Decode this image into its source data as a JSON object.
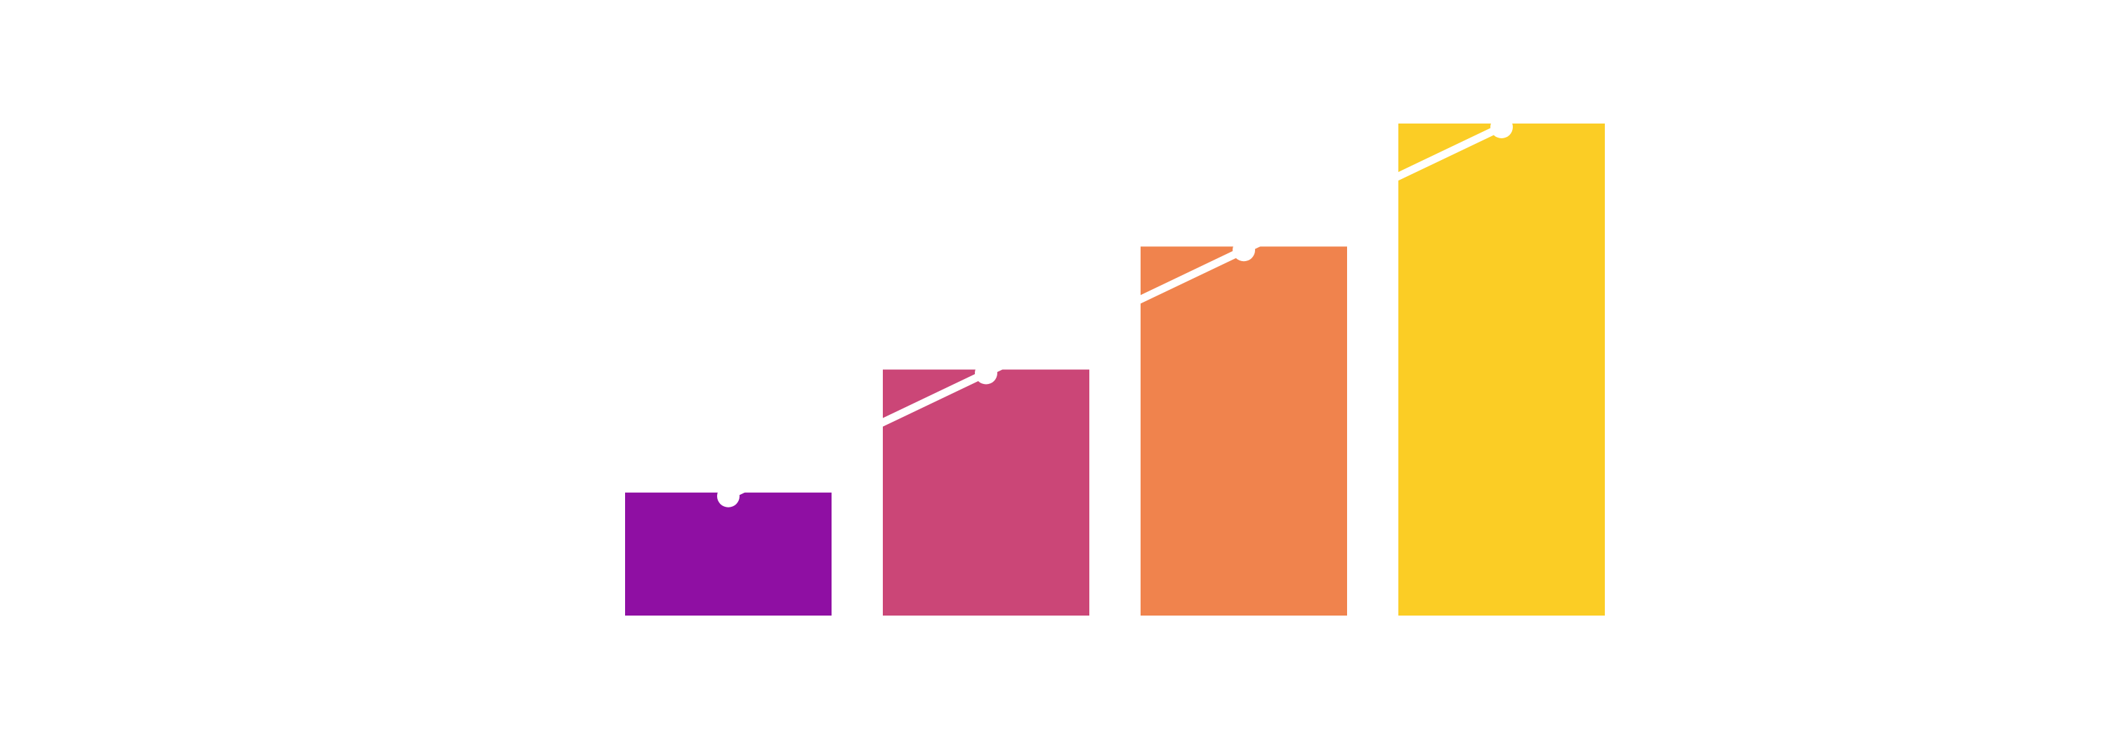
{
  "chart_data": {
    "type": "bar",
    "categories": [
      "",
      "",
      "",
      ""
    ],
    "values": [
      1,
      2,
      3,
      4
    ],
    "ylim": [
      0,
      4
    ],
    "grid": false,
    "legend": "none",
    "overlay": {
      "type": "line",
      "values": [
        1,
        2,
        3,
        4
      ],
      "color": "#ffffff",
      "markers": true
    },
    "bar_colors": [
      "#8F0FA3",
      "#CB4677",
      "#F0834D",
      "#FBCD25"
    ]
  },
  "colors": {
    "background": "#ffffff"
  }
}
